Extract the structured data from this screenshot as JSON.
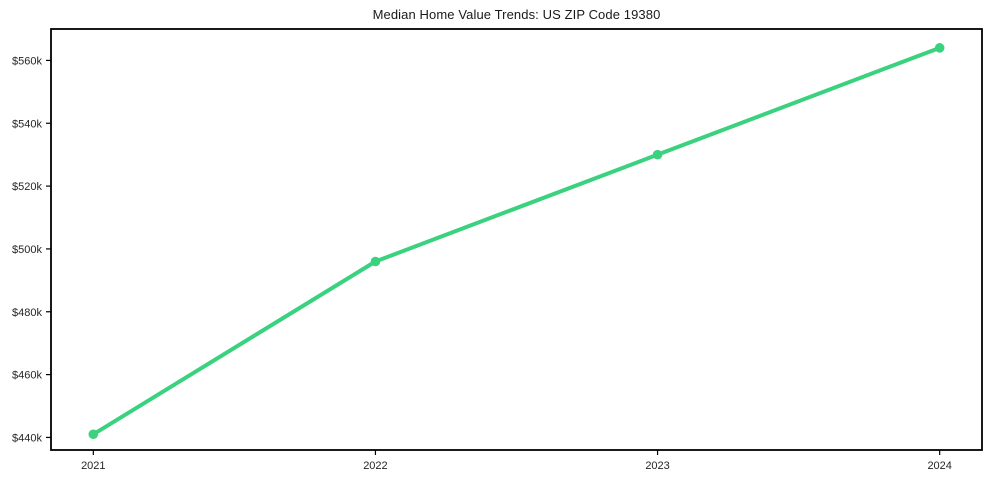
{
  "colors": {
    "line": "#3ad17f",
    "text": "#262626",
    "frame": "#000000",
    "background": "#ffffff"
  },
  "chart_data": {
    "type": "line",
    "title": "Median Home Value Trends: US ZIP Code 19380",
    "categories": [
      "2021",
      "2022",
      "2023",
      "2024"
    ],
    "values": [
      441000,
      496000,
      530000,
      564000
    ],
    "xlabel": "",
    "ylabel": "",
    "y_ticks": {
      "values": [
        440000,
        460000,
        480000,
        500000,
        520000,
        540000,
        560000
      ],
      "labels": [
        "$440k",
        "$460k",
        "$480k",
        "$500k",
        "$520k",
        "$540k",
        "$560k"
      ]
    },
    "ylim": [
      436000,
      570000
    ],
    "xlim": [
      -0.15,
      3.15
    ],
    "grid": false,
    "legend": "none",
    "marker": "circle",
    "line_color": "#3ad17f",
    "line_width": 4
  }
}
